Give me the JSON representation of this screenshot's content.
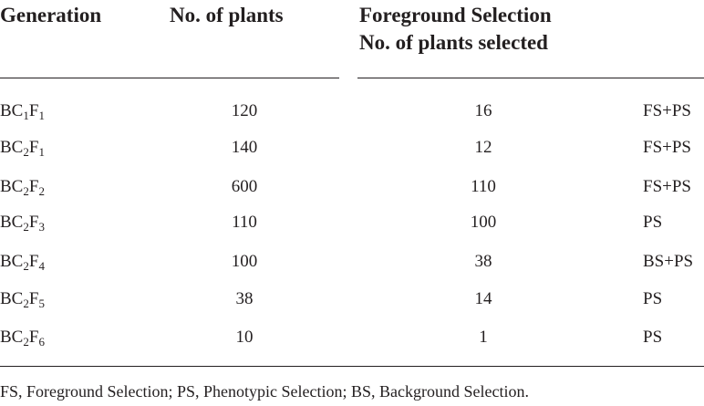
{
  "table": {
    "header": [
      "Generation",
      "No. of plants",
      [
        "Foreground Selection",
        "No. of plants selected"
      ]
    ],
    "rows": [
      [
        [
          "BC",
          "1",
          "F",
          "1"
        ],
        120,
        16,
        "FS+PS"
      ],
      [
        [
          "BC",
          "2",
          "F",
          "1"
        ],
        140,
        12,
        "FS+PS"
      ],
      [
        [
          "BC",
          "2",
          "F",
          "2"
        ],
        600,
        110,
        "FS+PS"
      ],
      [
        [
          "BC",
          "2",
          "F",
          "3"
        ],
        110,
        100,
        "PS"
      ],
      [
        [
          "BC",
          "2",
          "F",
          "4"
        ],
        100,
        38,
        "BS+PS"
      ],
      [
        [
          "BC",
          "2",
          "F",
          "5"
        ],
        38,
        14,
        "PS"
      ],
      [
        [
          "BC",
          "2",
          "F",
          "6"
        ],
        10,
        1,
        "PS"
      ]
    ]
  },
  "footnote": "FS, Foreground Selection; PS, Phenotypic Selection; BS, Background Selection."
}
